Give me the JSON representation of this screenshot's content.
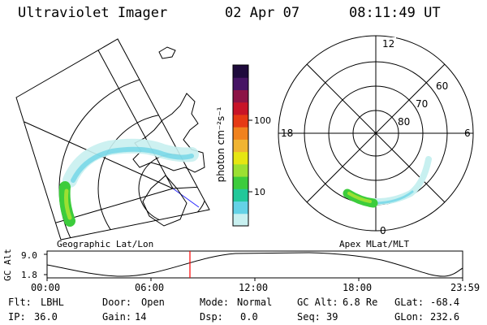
{
  "header": {
    "instrument": "Ultraviolet Imager",
    "date": "02 Apr 07",
    "time": "08:11:49 UT"
  },
  "colorbar": {
    "unit_label": "photon cm⁻²s⁻¹",
    "ticks": [
      "100",
      "10"
    ],
    "colors": [
      "#c8f0f0",
      "#64d2e6",
      "#22c89a",
      "#3ccc3c",
      "#9be032",
      "#e6e612",
      "#f0b432",
      "#f0821e",
      "#e63a14",
      "#c81428",
      "#8c1446",
      "#461464",
      "#1e0a3c"
    ]
  },
  "geo_panel": {
    "caption": "Geographic Lat/Lon"
  },
  "polar_panel": {
    "caption": "Apex MLat/MLT",
    "mlt_labels": {
      "top": "12",
      "left": "18",
      "right": "6",
      "bottom": "0"
    },
    "lat_labels": [
      "60",
      "70",
      "80"
    ]
  },
  "timeline": {
    "ylabel": "GC Alt",
    "y_ticks": [
      "9.0",
      "1.8"
    ],
    "x_ticks": [
      "00:00",
      "06:00",
      "12:00",
      "18:00",
      "23:59"
    ],
    "marker_color": "#ff0000"
  },
  "info": {
    "row1": [
      {
        "label": "Flt:",
        "value": "LBHL"
      },
      {
        "label": "Door:",
        "value": "Open"
      },
      {
        "label": "Mode:",
        "value": "Normal"
      },
      {
        "label": "GC Alt:",
        "value": "6.8 Re"
      },
      {
        "label": "GLat:",
        "value": "-68.4"
      }
    ],
    "row2": [
      {
        "label": "IP:",
        "value": "36.0"
      },
      {
        "label": "Gain:",
        "value": "14"
      },
      {
        "label": "Dsp:",
        "value": "0.0"
      },
      {
        "label": "Seq:",
        "value": "39"
      },
      {
        "label": "GLon:",
        "value": "232.6"
      }
    ]
  }
}
